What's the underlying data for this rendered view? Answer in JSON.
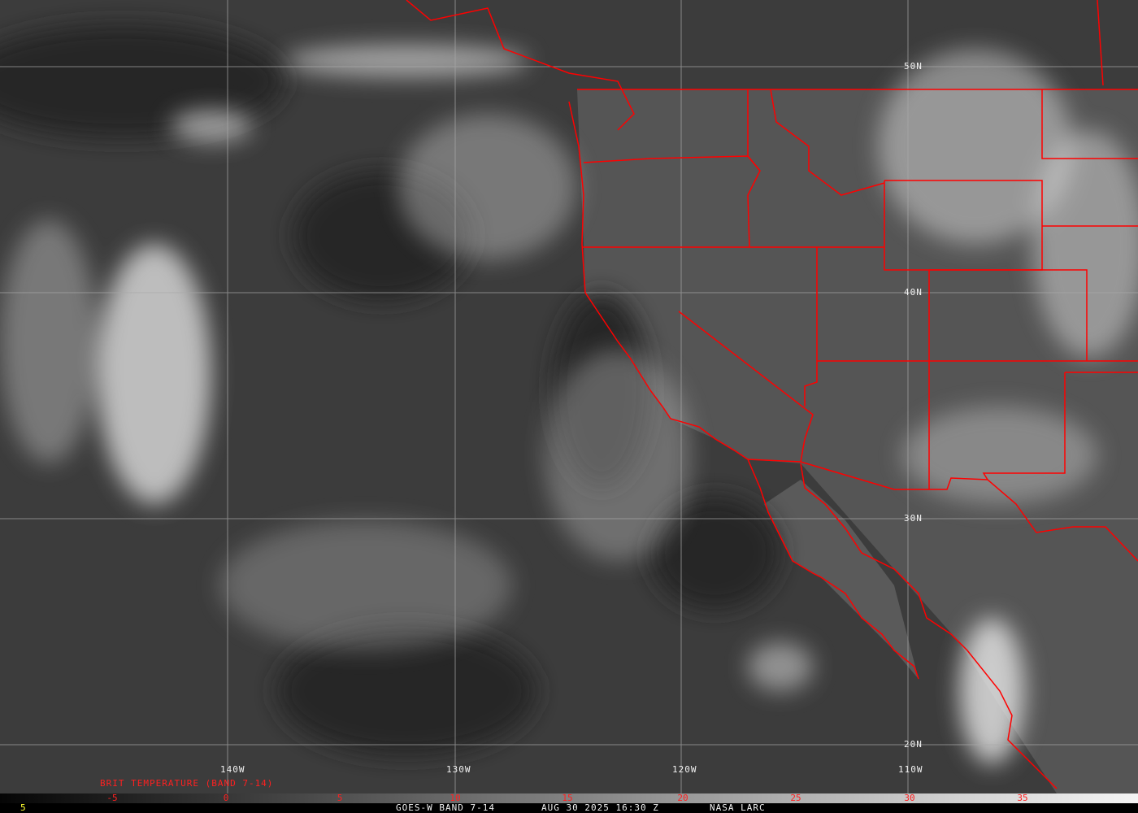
{
  "map": {
    "type": "satellite infrared imagery",
    "border_color": "#ff0000",
    "grid_color": "#b0b0b0",
    "longitude_labels": [
      "140W",
      "130W",
      "120W",
      "110W"
    ],
    "latitude_labels": [
      "50N",
      "40N",
      "30N",
      "20N"
    ]
  },
  "legend": {
    "title": "BRIT TEMPERATURE (BAND 7-14)",
    "ticks": [
      "-5",
      "0",
      "5",
      "10",
      "15",
      "20",
      "25",
      "30",
      "35"
    ],
    "colormap": "grayscale dark to light"
  },
  "footer": {
    "left_value": "5",
    "product": "GOES-W BAND 7-14",
    "datetime": "AUG 30 2025 16:30 Z",
    "source": "NASA LARC"
  }
}
